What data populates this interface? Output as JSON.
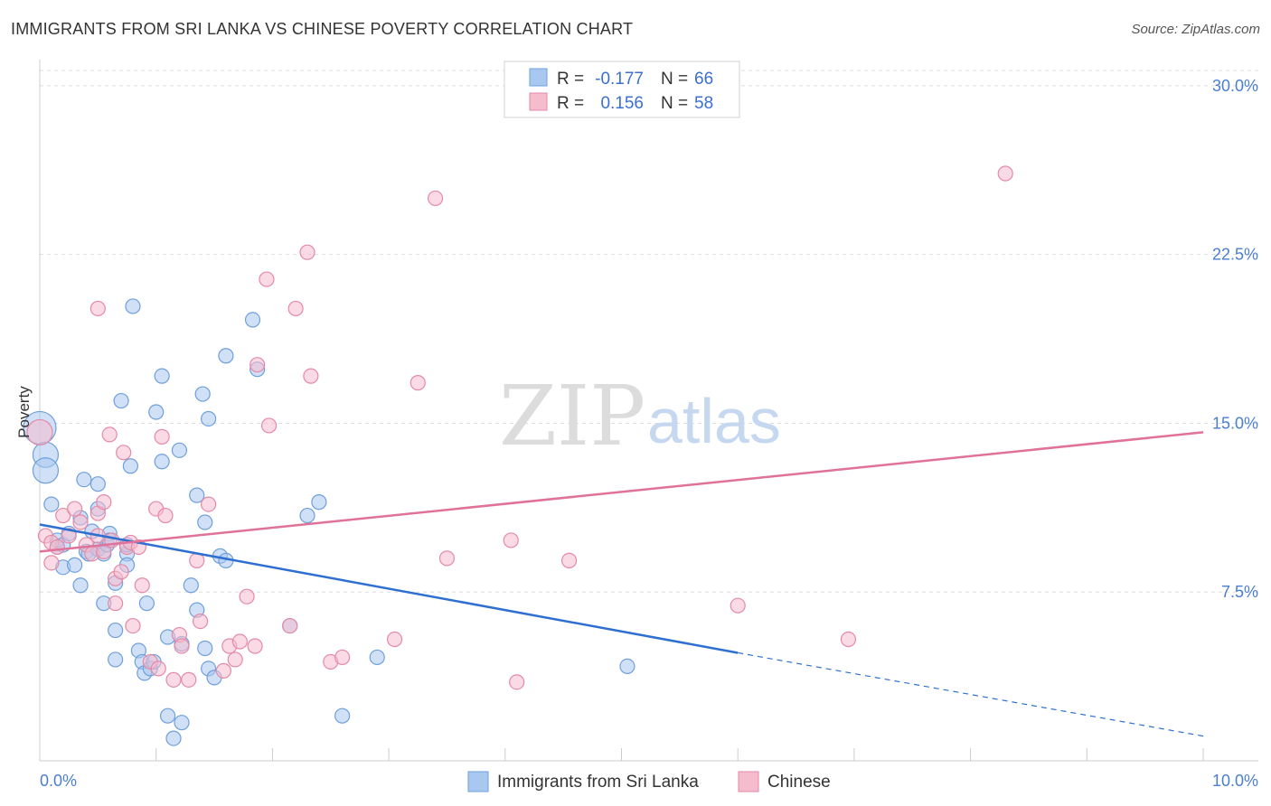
{
  "header": {
    "title": "IMMIGRANTS FROM SRI LANKA VS CHINESE POVERTY CORRELATION CHART",
    "source": "Source: ZipAtlas.com"
  },
  "watermark": {
    "zip": "ZIP",
    "atlas": "atlas"
  },
  "colors": {
    "blue_fill": "#a9c8f0",
    "blue_stroke": "#6f9fdc",
    "blue_line": "#2e6fd1",
    "pink_fill": "#f5bccd",
    "pink_stroke": "#e48aa6",
    "pink_line": "#e0729a",
    "grid": "#dddddd",
    "tick_text": "#4a7fcf"
  },
  "legend": {
    "rows": [
      {
        "r_label": "R =",
        "r_value": "-0.177",
        "n_label": "N =",
        "n_value": "66"
      },
      {
        "r_label": "R =",
        "r_value": "0.156",
        "n_label": "N =",
        "n_value": "58"
      }
    ]
  },
  "bottom_legend": [
    "Immigrants from Sri Lanka",
    "Chinese"
  ],
  "chart_data": {
    "type": "scatter",
    "title": "IMMIGRANTS FROM SRI LANKA VS CHINESE POVERTY CORRELATION CHART",
    "xlabel": "",
    "ylabel": "Poverty",
    "xlim": [
      0,
      10
    ],
    "ylim": [
      0,
      31
    ],
    "x_tick_labels": [
      "0.0%",
      "10.0%"
    ],
    "y_ticks": [
      7.5,
      15.0,
      22.5,
      30.0
    ],
    "y_tick_labels": [
      "7.5%",
      "15.0%",
      "22.5%",
      "30.0%"
    ],
    "grid": "horizontal dashed",
    "legend_position": "top-center",
    "series": [
      {
        "name": "Immigrants from Sri Lanka",
        "color": "#a9c8f0",
        "r": -0.177,
        "n": 66,
        "trend": {
          "x": [
            0,
            6.0
          ],
          "y": [
            10.5,
            4.8
          ],
          "dashed_to": [
            10,
            1.1
          ]
        },
        "points": [
          [
            0.0,
            14.8,
            3
          ],
          [
            0.05,
            13.6,
            2
          ],
          [
            0.05,
            12.9,
            2
          ],
          [
            0.1,
            11.4,
            1
          ],
          [
            0.15,
            9.5,
            1
          ],
          [
            0.15,
            9.8,
            1
          ],
          [
            0.2,
            9.6,
            1
          ],
          [
            0.2,
            8.6,
            1
          ],
          [
            0.25,
            10.1,
            1
          ],
          [
            0.3,
            8.7,
            1
          ],
          [
            0.35,
            10.8,
            1
          ],
          [
            0.35,
            7.8,
            1
          ],
          [
            0.4,
            9.3,
            1
          ],
          [
            0.38,
            12.5,
            1
          ],
          [
            0.42,
            9.2,
            1
          ],
          [
            0.45,
            10.2,
            1
          ],
          [
            0.5,
            11.2,
            1
          ],
          [
            0.5,
            9.4,
            1
          ],
          [
            0.5,
            12.3,
            1
          ],
          [
            0.55,
            9.2,
            1
          ],
          [
            0.55,
            7.0,
            1
          ],
          [
            0.58,
            9.6,
            1
          ],
          [
            0.6,
            10.1,
            1
          ],
          [
            0.6,
            9.8,
            1
          ],
          [
            0.65,
            7.9,
            1
          ],
          [
            0.65,
            5.8,
            1
          ],
          [
            0.65,
            4.5,
            1
          ],
          [
            0.7,
            16.0,
            1
          ],
          [
            0.75,
            9.2,
            1
          ],
          [
            0.75,
            9.6,
            1
          ],
          [
            0.75,
            8.7,
            1
          ],
          [
            0.78,
            13.1,
            1
          ],
          [
            0.8,
            20.2,
            1
          ],
          [
            0.85,
            4.9,
            1
          ],
          [
            0.88,
            4.4,
            1
          ],
          [
            0.9,
            3.9,
            1
          ],
          [
            0.92,
            7.0,
            1
          ],
          [
            0.95,
            4.1,
            1
          ],
          [
            0.98,
            4.4,
            1
          ],
          [
            1.0,
            15.5,
            1
          ],
          [
            1.05,
            17.1,
            1
          ],
          [
            1.05,
            13.3,
            1
          ],
          [
            1.1,
            5.5,
            1
          ],
          [
            1.1,
            2.0,
            1
          ],
          [
            1.15,
            1.0,
            1
          ],
          [
            1.2,
            13.8,
            1
          ],
          [
            1.22,
            5.2,
            1
          ],
          [
            1.22,
            1.7,
            1
          ],
          [
            1.3,
            7.8,
            1
          ],
          [
            1.35,
            11.8,
            1
          ],
          [
            1.35,
            6.7,
            1
          ],
          [
            1.4,
            16.3,
            1
          ],
          [
            1.42,
            10.6,
            1
          ],
          [
            1.42,
            5.0,
            1
          ],
          [
            1.45,
            15.2,
            1
          ],
          [
            1.45,
            4.1,
            1
          ],
          [
            1.5,
            3.7,
            1
          ],
          [
            1.55,
            9.1,
            1
          ],
          [
            1.6,
            18.0,
            1
          ],
          [
            1.6,
            8.9,
            1
          ],
          [
            1.83,
            19.6,
            1
          ],
          [
            1.87,
            17.4,
            1
          ],
          [
            2.15,
            6.0,
            1
          ],
          [
            2.3,
            10.9,
            1
          ],
          [
            2.4,
            11.5,
            1
          ],
          [
            2.6,
            2.0,
            1
          ],
          [
            2.9,
            4.6,
            1
          ],
          [
            5.05,
            4.2,
            1
          ]
        ]
      },
      {
        "name": "Chinese",
        "color": "#f5bccd",
        "r": 0.156,
        "n": 58,
        "trend": {
          "x": [
            0,
            10
          ],
          "y": [
            9.3,
            14.6
          ]
        },
        "points": [
          [
            0.0,
            14.6,
            2
          ],
          [
            0.05,
            10.0,
            1
          ],
          [
            0.1,
            9.7,
            1
          ],
          [
            0.1,
            8.8,
            1
          ],
          [
            0.15,
            9.5,
            1
          ],
          [
            0.2,
            10.9,
            1
          ],
          [
            0.25,
            10.0,
            1
          ],
          [
            0.3,
            11.2,
            1
          ],
          [
            0.35,
            10.6,
            1
          ],
          [
            0.4,
            9.6,
            1
          ],
          [
            0.45,
            9.2,
            1
          ],
          [
            0.5,
            11.0,
            1
          ],
          [
            0.5,
            10.0,
            1
          ],
          [
            0.55,
            11.5,
            1
          ],
          [
            0.5,
            20.1,
            1
          ],
          [
            0.55,
            9.3,
            1
          ],
          [
            0.6,
            14.5,
            1
          ],
          [
            0.62,
            9.8,
            1
          ],
          [
            0.65,
            7.0,
            1
          ],
          [
            0.65,
            8.1,
            1
          ],
          [
            0.7,
            8.4,
            1
          ],
          [
            0.72,
            13.7,
            1
          ],
          [
            0.75,
            9.5,
            1
          ],
          [
            0.78,
            9.7,
            1
          ],
          [
            0.8,
            6.0,
            1
          ],
          [
            0.85,
            9.5,
            1
          ],
          [
            0.88,
            7.8,
            1
          ],
          [
            0.95,
            4.4,
            1
          ],
          [
            1.0,
            11.2,
            1
          ],
          [
            1.02,
            4.1,
            1
          ],
          [
            1.05,
            14.4,
            1
          ],
          [
            1.08,
            10.9,
            1
          ],
          [
            1.15,
            3.6,
            1
          ],
          [
            1.2,
            5.6,
            1
          ],
          [
            1.22,
            5.1,
            1
          ],
          [
            1.28,
            3.6,
            1
          ],
          [
            1.35,
            8.9,
            1
          ],
          [
            1.38,
            6.2,
            1
          ],
          [
            1.45,
            11.4,
            1
          ],
          [
            1.58,
            4.0,
            1
          ],
          [
            1.63,
            5.1,
            1
          ],
          [
            1.68,
            4.5,
            1
          ],
          [
            1.72,
            5.3,
            1
          ],
          [
            1.78,
            7.3,
            1
          ],
          [
            1.85,
            5.1,
            1
          ],
          [
            1.87,
            17.6,
            1
          ],
          [
            1.95,
            21.4,
            1
          ],
          [
            1.97,
            14.9,
            1
          ],
          [
            2.15,
            6.0,
            1
          ],
          [
            2.2,
            20.1,
            1
          ],
          [
            2.3,
            22.6,
            1
          ],
          [
            2.33,
            17.1,
            1
          ],
          [
            2.5,
            4.4,
            1
          ],
          [
            2.6,
            4.6,
            1
          ],
          [
            3.05,
            5.4,
            1
          ],
          [
            3.25,
            16.8,
            1
          ],
          [
            3.4,
            25.0,
            1
          ],
          [
            3.5,
            9.0,
            1
          ],
          [
            4.05,
            9.8,
            1
          ],
          [
            4.1,
            3.5,
            1
          ],
          [
            4.55,
            8.9,
            1
          ],
          [
            6.0,
            6.9,
            1
          ],
          [
            6.95,
            5.4,
            1
          ],
          [
            8.3,
            26.1,
            1
          ]
        ]
      }
    ]
  }
}
